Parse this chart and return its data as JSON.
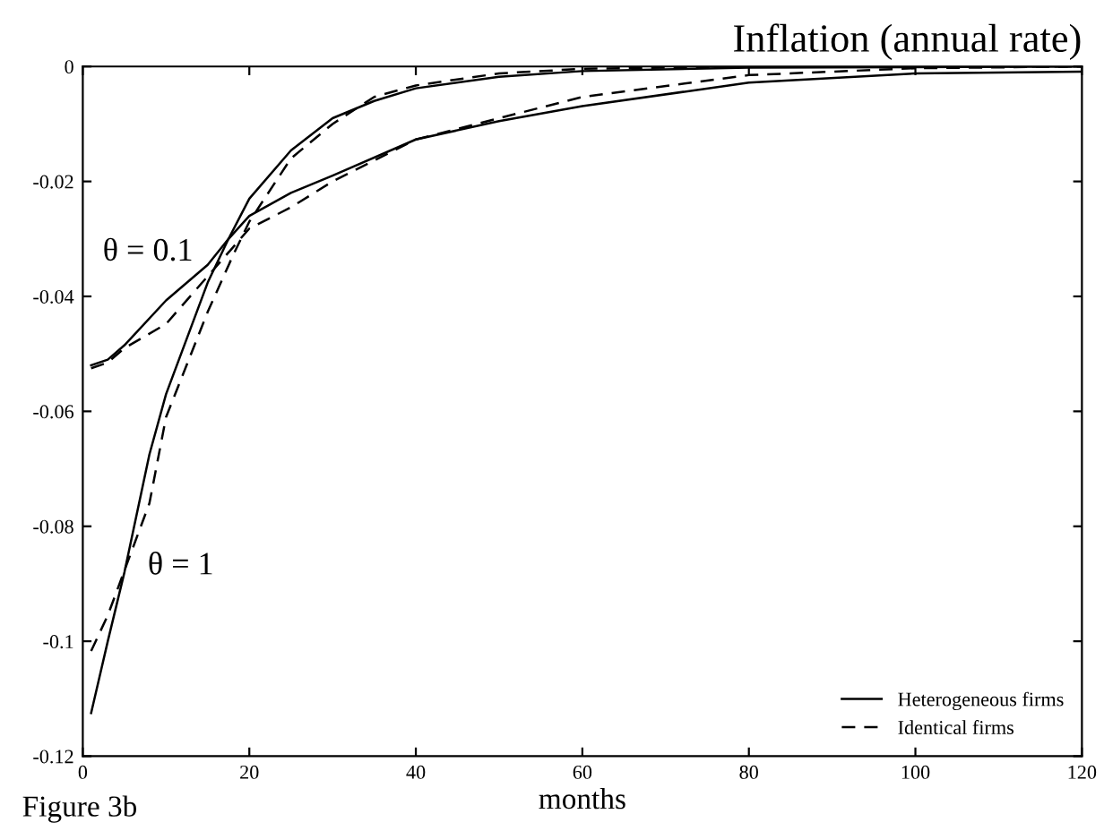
{
  "chart_data": {
    "type": "line",
    "title": "Inflation (annual rate)",
    "xlabel": "months",
    "xlim": [
      0,
      120
    ],
    "xticks": [
      0,
      20,
      40,
      60,
      80,
      100,
      120
    ],
    "ylim": [
      -0.12,
      0
    ],
    "yticks": [
      {
        "value": -0.12,
        "label": "-0.12"
      },
      {
        "value": -0.1,
        "label": "-0.1"
      },
      {
        "value": -0.08,
        "label": "-0.08"
      },
      {
        "value": -0.06,
        "label": "-0.06"
      },
      {
        "value": -0.04,
        "label": "-0.04"
      },
      {
        "value": -0.02,
        "label": "-0.02"
      },
      {
        "value": 0,
        "label": "0"
      }
    ],
    "grid": false,
    "legend": "bottom right",
    "marker": "none",
    "series": [
      {
        "name": "Heterogeneous firms",
        "color": "#000000",
        "line_style": "solid",
        "x": [
          1,
          3,
          5,
          8,
          10,
          15,
          17.5,
          20,
          25,
          30,
          35,
          40,
          50,
          60,
          80,
          120
        ],
        "values": [
          -0.1125,
          -0.1,
          -0.088,
          -0.0675,
          -0.057,
          -0.0376,
          -0.03,
          -0.023,
          -0.0146,
          -0.009,
          -0.006,
          -0.0038,
          -0.0018,
          -0.0008,
          -0.0002,
          0
        ]
      },
      {
        "name": "Identical firms",
        "color": "#000000",
        "line_style": "dashed",
        "x": [
          1,
          3,
          5,
          8,
          10,
          15,
          18,
          20,
          25,
          30,
          35,
          40,
          50,
          60,
          80,
          120
        ],
        "values": [
          -0.1017,
          -0.0955,
          -0.0877,
          -0.076,
          -0.061,
          -0.0427,
          -0.033,
          -0.027,
          -0.016,
          -0.01,
          -0.0053,
          -0.0033,
          -0.0012,
          -0.0004,
          0,
          0
        ]
      },
      {
        "color": "#000000",
        "line_style": "solid",
        "x": [
          1,
          3,
          5,
          10,
          15,
          17.5,
          20,
          25,
          30,
          40,
          50,
          60,
          80,
          100,
          120
        ],
        "values": [
          -0.052,
          -0.051,
          -0.0485,
          -0.0407,
          -0.0345,
          -0.03,
          -0.026,
          -0.022,
          -0.019,
          -0.0127,
          -0.0095,
          -0.0069,
          -0.0028,
          -0.0012,
          -0.0009
        ]
      },
      {
        "color": "#000000",
        "line_style": "dashed",
        "x": [
          1,
          3,
          5,
          10,
          15,
          20,
          25,
          30,
          40,
          50,
          60,
          80,
          100,
          120
        ],
        "values": [
          -0.0525,
          -0.0515,
          -0.049,
          -0.0448,
          -0.0365,
          -0.0282,
          -0.0245,
          -0.02,
          -0.0127,
          -0.009,
          -0.0053,
          -0.0015,
          -0.0003,
          0
        ]
      }
    ],
    "annotations": [
      "θ = 0.1",
      "θ = 1",
      "Figure 3b"
    ]
  }
}
